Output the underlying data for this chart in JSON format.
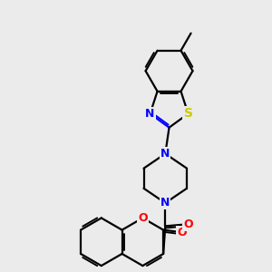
{
  "bg_color": "#ebebeb",
  "atom_colors": {
    "N": "#0000ff",
    "O": "#ff0000",
    "S": "#cccc00",
    "C": "#000000"
  },
  "bond_lw": 1.6,
  "font_size": 9,
  "dbo": 0.055
}
